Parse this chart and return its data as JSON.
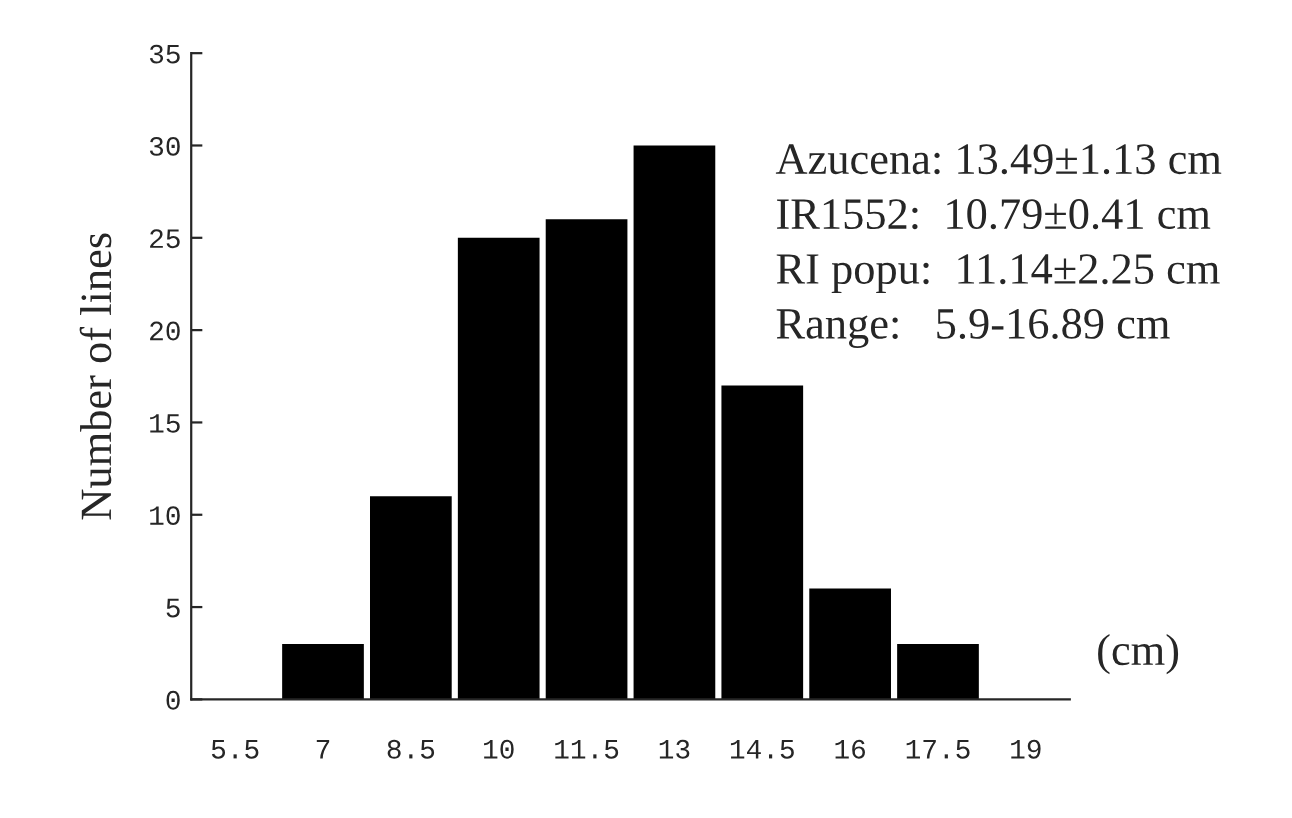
{
  "chart_data": {
    "type": "bar",
    "categories": [
      "5.5",
      "7",
      "8.5",
      "10",
      "11.5",
      "13",
      "14.5",
      "16",
      "17.5",
      "19"
    ],
    "values": [
      0,
      3,
      11,
      25,
      26,
      30,
      17,
      6,
      3,
      0
    ],
    "color": "#000000",
    "ylabel": "Number of lines",
    "xlabel": "(cm)",
    "ylim": [
      0,
      35
    ],
    "yticks": [
      0,
      5,
      10,
      15,
      20,
      25,
      30,
      35
    ],
    "annotations": [
      "Azucena: 13.49±1.13 cm",
      "IR1552:  10.79±0.41 cm",
      "RI popu:  11.14±2.25 cm",
      "Range:   5.9-16.89 cm"
    ],
    "grid": false,
    "legend": false
  }
}
